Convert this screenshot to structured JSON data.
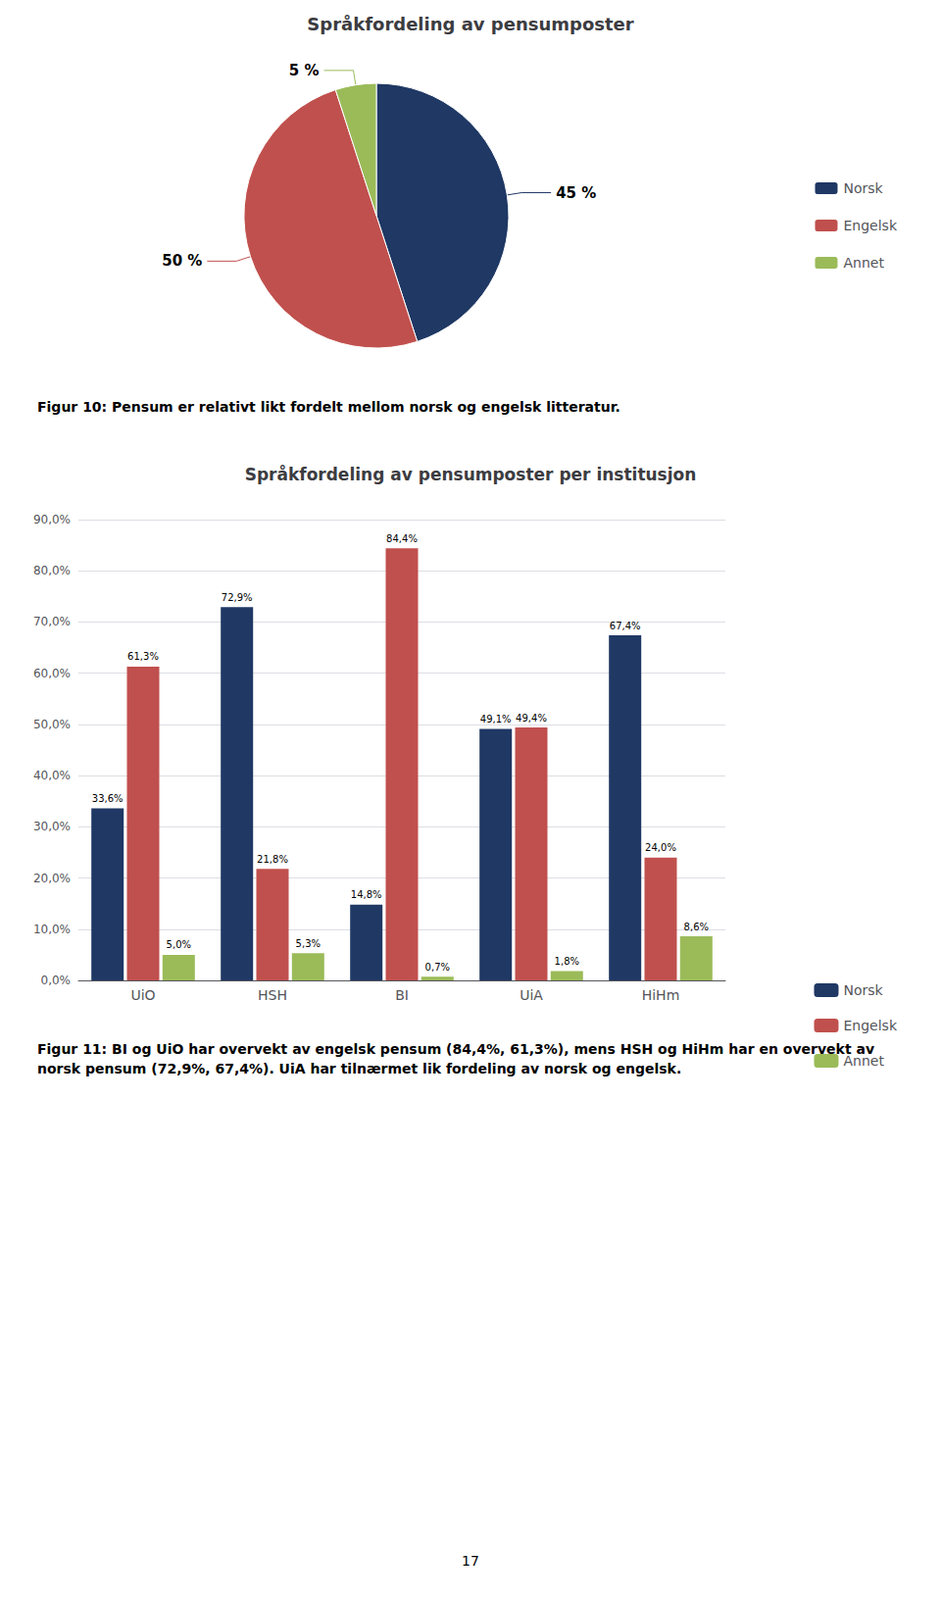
{
  "chart_data": [
    {
      "type": "pie",
      "title": "Språkfordeling av pensumposter",
      "categories": [
        "Norsk",
        "Engelsk",
        "Annet"
      ],
      "values": [
        45,
        50,
        5
      ],
      "value_labels": [
        "45 %",
        "50 %",
        "5 %"
      ],
      "colors": [
        "#1F3864",
        "#C0504D",
        "#9BBB59"
      ],
      "data_labels": true,
      "legend": "right",
      "caption": "Figur 10: Pensum er relativt likt fordelt mellom norsk og engelsk litteratur."
    },
    {
      "type": "bar",
      "title": "Språkfordeling av pensumposter per institusjon",
      "categories": [
        "UiO",
        "HSH",
        "BI",
        "UiA",
        "HiHm"
      ],
      "series": [
        {
          "name": "Norsk",
          "color": "#1F3864",
          "values": [
            33.6,
            72.9,
            14.8,
            49.1,
            67.4
          ],
          "value_labels": [
            "33,6%",
            "72,9%",
            "14,8%",
            "49,1%",
            "67,4%"
          ]
        },
        {
          "name": "Engelsk",
          "color": "#C0504D",
          "values": [
            61.3,
            21.8,
            84.4,
            49.4,
            24.0
          ],
          "value_labels": [
            "61,3%",
            "21,8%",
            "84,4%",
            "49,4%",
            "24,0%"
          ]
        },
        {
          "name": "Annet",
          "color": "#9BBB59",
          "values": [
            5.0,
            5.3,
            0.7,
            1.8,
            8.6
          ],
          "value_labels": [
            "5,0%",
            "5,3%",
            "0,7%",
            "1,8%",
            "8,6%"
          ]
        }
      ],
      "ylim": [
        0,
        90
      ],
      "yticks": [
        {
          "value": 0,
          "label": "0,0%"
        },
        {
          "value": 10,
          "label": "10,0%"
        },
        {
          "value": 20,
          "label": "20,0%"
        },
        {
          "value": 30,
          "label": "30,0%"
        },
        {
          "value": 40,
          "label": "40,0%"
        },
        {
          "value": 50,
          "label": "50,0%"
        },
        {
          "value": 60,
          "label": "60,0%"
        },
        {
          "value": 70,
          "label": "70,0%"
        },
        {
          "value": 80,
          "label": "80,0%"
        },
        {
          "value": 90,
          "label": "90,0%"
        }
      ],
      "grid": true,
      "data_labels": true,
      "legend": "right",
      "caption": "Figur 11: BI og UiO har overvekt av engelsk pensum (84,4%, 61,3%), mens HSH og HiHm har en overvekt av norsk pensum (72,9%, 67,4%). UiA har tilnærmet lik fordeling av norsk og engelsk.",
      "page_number": "17"
    }
  ]
}
